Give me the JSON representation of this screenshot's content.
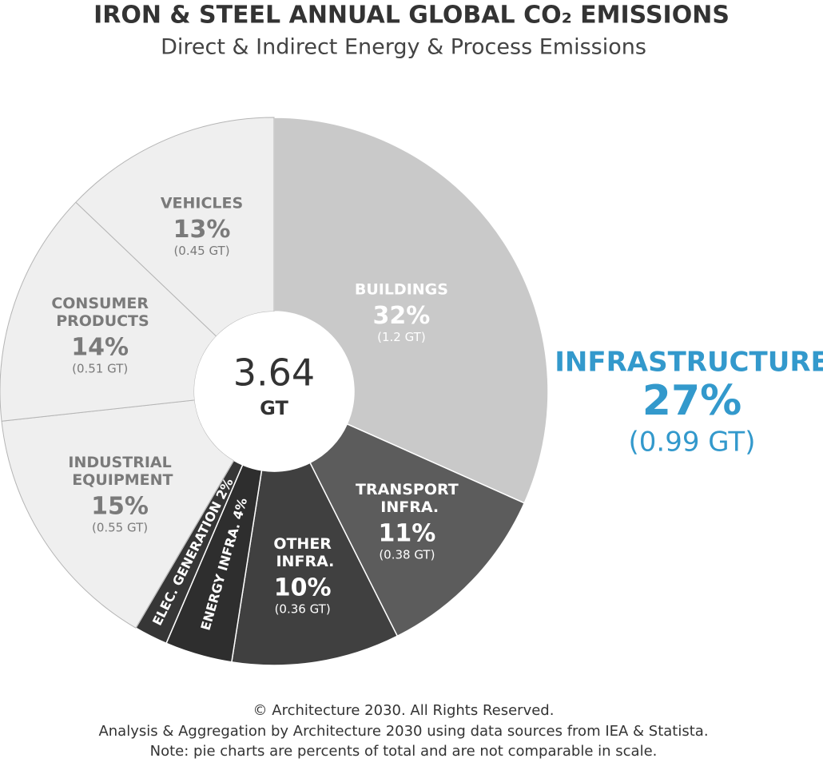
{
  "chart_data": {
    "type": "donut",
    "title": "IRON & STEEL ANNUAL GLOBAL CO₂ EMISSIONS",
    "subtitle": "Direct & Indirect Energy & Process Emissions",
    "categories": [
      "BUILDINGS",
      "TRANSPORT INFRA.",
      "OTHER INFRA.",
      "ENERGY INFRA.",
      "ELEC. GENERATION",
      "INDUSTRIAL EQUIPMENT",
      "CONSUMER PRODUCTS",
      "VEHICLES"
    ],
    "values": [
      32,
      11,
      10,
      4,
      2,
      15,
      14,
      13
    ],
    "value_labels": [
      "32%",
      "11%",
      "10%",
      "4%",
      "2%",
      "15%",
      "14%",
      "13%"
    ],
    "detail_labels": [
      "(1.2 GT)",
      "(0.38 GT)",
      "(0.36 GT)",
      null,
      null,
      "(0.55 GT)",
      "(0.51 GT)",
      "(0.45 GT)"
    ],
    "colors": [
      "#c9c9c9",
      "#5c5c5c",
      "#404040",
      "#2e2e2e",
      "#363636",
      "#efefef",
      "#efefef",
      "#efefef"
    ],
    "center_value": 3.64,
    "center_unit": "GT",
    "annotation": {
      "title": "INFRASTRUCTURE",
      "value": "27%",
      "detail": "(0.99 GT)",
      "color": "#3399cc"
    },
    "footer": [
      "© Architecture 2030. All Rights Reserved.",
      "Analysis & Aggregation by Architecture 2030 using data sources from IEA & Statista.",
      "Note: pie charts are percents of total and are not comparable in scale."
    ]
  }
}
